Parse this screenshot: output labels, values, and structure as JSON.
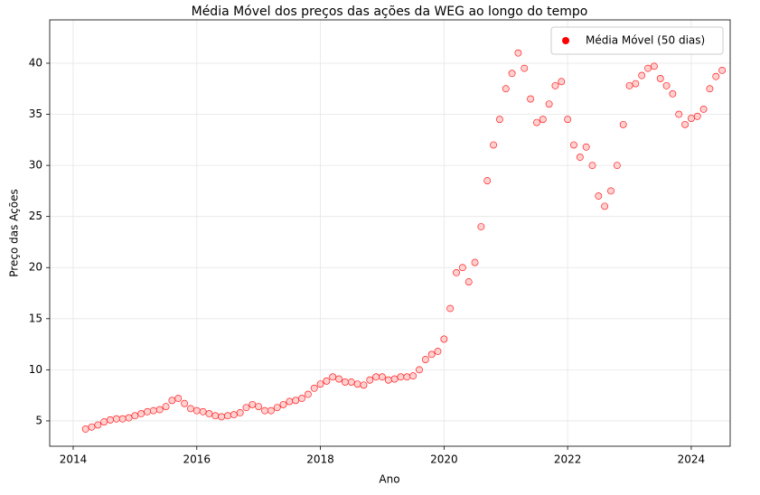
{
  "chart_data": {
    "type": "scatter",
    "title": "Média Móvel dos preços das ações da WEG ao longo do tempo",
    "xlabel": "Ano",
    "ylabel": "Preço das Ações",
    "xlim": [
      2013.62,
      2024.63
    ],
    "ylim": [
      2.52,
      44.24
    ],
    "xticks": [
      2014,
      2016,
      2018,
      2020,
      2022,
      2024
    ],
    "yticks": [
      5,
      10,
      15,
      20,
      25,
      30,
      35,
      40
    ],
    "grid": true,
    "legend": "upper-right",
    "series": [
      {
        "name": "Média Móvel (50 dias)",
        "color": "#ff0000",
        "x": [
          2014.2,
          2014.3,
          2014.4,
          2014.5,
          2014.6,
          2014.7,
          2014.8,
          2014.9,
          2015.0,
          2015.1,
          2015.2,
          2015.3,
          2015.4,
          2015.5,
          2015.6,
          2015.7,
          2015.8,
          2015.9,
          2016.0,
          2016.1,
          2016.2,
          2016.3,
          2016.4,
          2016.5,
          2016.6,
          2016.7,
          2016.8,
          2016.9,
          2017.0,
          2017.1,
          2017.2,
          2017.3,
          2017.4,
          2017.5,
          2017.6,
          2017.7,
          2017.8,
          2017.9,
          2018.0,
          2018.1,
          2018.2,
          2018.3,
          2018.4,
          2018.5,
          2018.6,
          2018.7,
          2018.8,
          2018.9,
          2019.0,
          2019.1,
          2019.2,
          2019.3,
          2019.4,
          2019.5,
          2019.6,
          2019.7,
          2019.8,
          2019.9,
          2020.0,
          2020.1,
          2020.2,
          2020.3,
          2020.4,
          2020.5,
          2020.6,
          2020.7,
          2020.8,
          2020.9,
          2021.0,
          2021.1,
          2021.2,
          2021.3,
          2021.4,
          2021.5,
          2021.6,
          2021.7,
          2021.8,
          2021.9,
          2022.0,
          2022.1,
          2022.2,
          2022.3,
          2022.4,
          2022.5,
          2022.6,
          2022.7,
          2022.8,
          2022.9,
          2023.0,
          2023.1,
          2023.2,
          2023.3,
          2023.4,
          2023.5,
          2023.6,
          2023.7,
          2023.8,
          2023.9,
          2024.0,
          2024.1,
          2024.2,
          2024.3,
          2024.4,
          2024.5
        ],
        "values": [
          4.2,
          4.4,
          4.6,
          4.9,
          5.1,
          5.2,
          5.2,
          5.3,
          5.5,
          5.7,
          5.9,
          6.0,
          6.1,
          6.4,
          7.0,
          7.2,
          6.7,
          6.2,
          6.0,
          5.9,
          5.7,
          5.5,
          5.4,
          5.5,
          5.6,
          5.8,
          6.3,
          6.6,
          6.4,
          6.0,
          6.0,
          6.3,
          6.6,
          6.9,
          7.0,
          7.2,
          7.6,
          8.2,
          8.6,
          8.9,
          9.3,
          9.1,
          8.8,
          8.8,
          8.6,
          8.5,
          9.0,
          9.3,
          9.3,
          9.0,
          9.1,
          9.3,
          9.3,
          9.4,
          10.0,
          11.0,
          11.5,
          11.8,
          13.0,
          16.0,
          19.5,
          20.0,
          18.6,
          20.5,
          24.0,
          28.5,
          32.0,
          34.5,
          37.5,
          39.0,
          41.0,
          39.5,
          36.5,
          34.2,
          34.5,
          36.0,
          37.8,
          38.2,
          34.5,
          32.0,
          30.8,
          31.8,
          30.0,
          27.0,
          26.0,
          27.5,
          30.0,
          34.0,
          37.8,
          38.0,
          38.8,
          39.5,
          39.7,
          38.5,
          37.8,
          37.0,
          35.0,
          34.0,
          34.6,
          34.8,
          35.5,
          37.5,
          38.7,
          39.3
        ]
      }
    ]
  }
}
